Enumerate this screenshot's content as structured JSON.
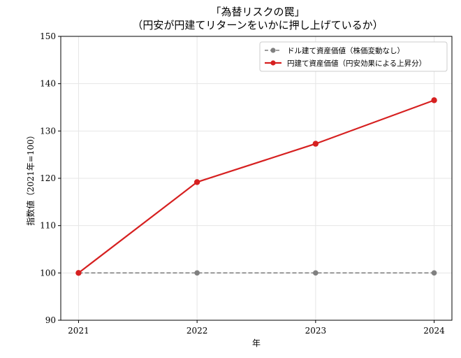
{
  "chart_data": {
    "type": "line",
    "title_lines": [
      "「為替リスクの罠」",
      "（円安が円建てリターンをいかに押し上げているか）"
    ],
    "xlabel": "年",
    "ylabel": "指数値（2021年=100）",
    "x": [
      2021,
      2022,
      2023,
      2024
    ],
    "x_tick_labels": [
      "2021",
      "2022",
      "2023",
      "2024"
    ],
    "ylim": [
      90,
      150
    ],
    "y_ticks": [
      90,
      100,
      110,
      120,
      130,
      140,
      150
    ],
    "grid": true,
    "legend_position": "top-right",
    "series": [
      {
        "name": "ドル建て資産価値（株価変動なし）",
        "values": [
          100,
          100,
          100,
          100
        ],
        "color": "#808080",
        "line_style": "dashed",
        "marker": "circle"
      },
      {
        "name": "円建て資産価値（円安効果による上昇分）",
        "values": [
          100,
          119.2,
          127.3,
          136.5
        ],
        "color": "#d62020",
        "line_style": "solid",
        "marker": "circle"
      }
    ]
  }
}
